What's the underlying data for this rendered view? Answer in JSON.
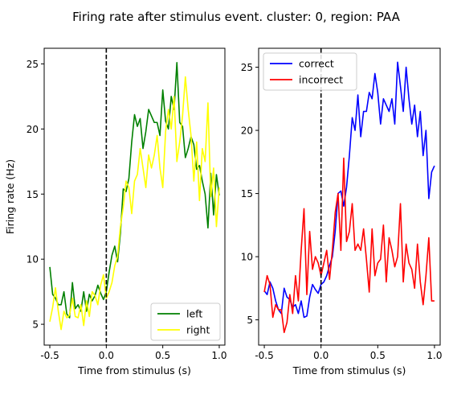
{
  "figure": {
    "suptitle": "Firing rate after stimulus event. cluster: 0, region: PAA"
  },
  "chart_data": [
    {
      "type": "line",
      "title": "",
      "xlabel": "Time from stimulus (s)",
      "ylabel": "Firing rate (Hz)",
      "xlim": [
        -0.55,
        1.05
      ],
      "ylim": [
        3.4,
        26.2
      ],
      "xticks": [
        -0.5,
        0.0,
        0.5,
        1.0
      ],
      "xtick_labels": [
        "-0.5",
        "0.0",
        "0.5",
        "1.0"
      ],
      "yticks": [
        5,
        10,
        15,
        20,
        25
      ],
      "ytick_labels": [
        "5",
        "10",
        "15",
        "20",
        "25"
      ],
      "grid": false,
      "legend_position": "lower-right",
      "stimulus_line_x": 0.0,
      "series": [
        {
          "name": "left",
          "color": "#008000",
          "x": [
            -0.5,
            -0.475,
            -0.45,
            -0.425,
            -0.4,
            -0.375,
            -0.35,
            -0.325,
            -0.3,
            -0.275,
            -0.25,
            -0.225,
            -0.2,
            -0.175,
            -0.15,
            -0.125,
            -0.1,
            -0.075,
            -0.05,
            -0.025,
            0.0,
            0.025,
            0.05,
            0.075,
            0.1,
            0.125,
            0.15,
            0.175,
            0.2,
            0.225,
            0.25,
            0.275,
            0.3,
            0.325,
            0.35,
            0.375,
            0.4,
            0.425,
            0.45,
            0.475,
            0.5,
            0.525,
            0.55,
            0.575,
            0.6,
            0.625,
            0.65,
            0.675,
            0.7,
            0.725,
            0.75,
            0.775,
            0.8,
            0.825,
            0.85,
            0.875,
            0.9,
            0.925,
            0.95,
            0.975,
            1.0
          ],
          "values": [
            9.4,
            7.3,
            7.0,
            6.5,
            6.5,
            7.5,
            5.8,
            5.5,
            8.2,
            6.2,
            6.5,
            6.0,
            7.5,
            6.0,
            7.3,
            6.8,
            7.2,
            8.0,
            7.4,
            6.9,
            7.5,
            9.0,
            10.3,
            11.0,
            9.8,
            12.0,
            15.4,
            15.2,
            16.2,
            19.0,
            21.1,
            20.2,
            20.8,
            18.5,
            19.8,
            21.5,
            21.0,
            20.5,
            20.5,
            19.5,
            23.0,
            20.6,
            20.0,
            22.5,
            21.5,
            25.1,
            20.5,
            20.2,
            17.8,
            18.5,
            19.4,
            18.8,
            16.9,
            17.2,
            16.0,
            15.0,
            12.4,
            16.6,
            13.4,
            16.5,
            14.9
          ]
        },
        {
          "name": "right",
          "color": "#ffff00",
          "x": [
            -0.5,
            -0.475,
            -0.45,
            -0.425,
            -0.4,
            -0.375,
            -0.35,
            -0.325,
            -0.3,
            -0.275,
            -0.25,
            -0.225,
            -0.2,
            -0.175,
            -0.15,
            -0.125,
            -0.1,
            -0.075,
            -0.05,
            -0.025,
            0.0,
            0.025,
            0.05,
            0.075,
            0.1,
            0.125,
            0.15,
            0.175,
            0.2,
            0.225,
            0.25,
            0.275,
            0.3,
            0.325,
            0.35,
            0.375,
            0.4,
            0.425,
            0.45,
            0.475,
            0.5,
            0.525,
            0.55,
            0.575,
            0.6,
            0.625,
            0.65,
            0.675,
            0.7,
            0.725,
            0.75,
            0.775,
            0.8,
            0.825,
            0.85,
            0.875,
            0.9,
            0.925,
            0.95,
            0.975,
            1.0
          ],
          "values": [
            5.2,
            6.3,
            7.8,
            6.0,
            4.6,
            6.0,
            5.5,
            5.7,
            7.0,
            5.6,
            5.5,
            6.5,
            4.9,
            6.8,
            5.6,
            7.5,
            7.2,
            6.5,
            8.0,
            8.8,
            7.0,
            7.5,
            8.2,
            9.5,
            10.2,
            12.5,
            14.0,
            16.0,
            15.5,
            13.5,
            16.0,
            16.5,
            18.5,
            17.0,
            15.5,
            18.0,
            17.0,
            18.0,
            19.5,
            17.0,
            15.5,
            19.8,
            21.5,
            20.0,
            22.5,
            17.5,
            19.0,
            21.0,
            24.0,
            21.5,
            19.5,
            16.0,
            19.0,
            14.5,
            18.5,
            17.5,
            22.0,
            14.8,
            17.0,
            12.5,
            15.5
          ]
        }
      ]
    },
    {
      "type": "line",
      "title": "",
      "xlabel": "Time from stimulus (s)",
      "ylabel": "",
      "xlim": [
        -0.55,
        1.05
      ],
      "ylim": [
        3.0,
        26.5
      ],
      "xticks": [
        -0.5,
        0.0,
        0.5,
        1.0
      ],
      "xtick_labels": [
        "-0.5",
        "0.0",
        "0.5",
        "1.0"
      ],
      "yticks": [
        5,
        10,
        15,
        20,
        25
      ],
      "ytick_labels": [
        "5",
        "10",
        "15",
        "20",
        "25"
      ],
      "grid": false,
      "legend_position": "top-left",
      "stimulus_line_x": 0.0,
      "series": [
        {
          "name": "correct",
          "color": "#0000ff",
          "x": [
            -0.5,
            -0.475,
            -0.45,
            -0.425,
            -0.4,
            -0.375,
            -0.35,
            -0.325,
            -0.3,
            -0.275,
            -0.25,
            -0.225,
            -0.2,
            -0.175,
            -0.15,
            -0.125,
            -0.1,
            -0.075,
            -0.05,
            -0.025,
            0.0,
            0.025,
            0.05,
            0.075,
            0.1,
            0.125,
            0.15,
            0.175,
            0.2,
            0.225,
            0.25,
            0.275,
            0.3,
            0.325,
            0.35,
            0.375,
            0.4,
            0.425,
            0.45,
            0.475,
            0.5,
            0.525,
            0.55,
            0.575,
            0.6,
            0.625,
            0.65,
            0.675,
            0.7,
            0.725,
            0.75,
            0.775,
            0.8,
            0.825,
            0.85,
            0.875,
            0.9,
            0.925,
            0.95,
            0.975,
            1.0
          ],
          "values": [
            7.3,
            7.0,
            8.0,
            7.5,
            6.5,
            5.8,
            5.5,
            7.5,
            6.8,
            6.6,
            6.0,
            6.2,
            5.5,
            6.5,
            5.2,
            5.3,
            6.8,
            7.8,
            7.4,
            7.1,
            7.8,
            8.0,
            8.5,
            9.3,
            10.0,
            12.0,
            15.0,
            15.2,
            14.0,
            15.5,
            18.0,
            21.0,
            20.0,
            22.8,
            19.5,
            21.5,
            21.5,
            23.0,
            22.5,
            24.5,
            23.0,
            20.5,
            22.5,
            22.0,
            21.5,
            22.5,
            20.5,
            25.4,
            23.5,
            21.5,
            25.0,
            22.5,
            20.5,
            22.0,
            19.5,
            21.5,
            18.0,
            20.0,
            14.6,
            16.7,
            17.2
          ]
        },
        {
          "name": "incorrect",
          "color": "#ff0000",
          "x": [
            -0.5,
            -0.475,
            -0.45,
            -0.425,
            -0.4,
            -0.375,
            -0.35,
            -0.325,
            -0.3,
            -0.275,
            -0.25,
            -0.225,
            -0.2,
            -0.175,
            -0.15,
            -0.125,
            -0.1,
            -0.075,
            -0.05,
            -0.025,
            0.0,
            0.025,
            0.05,
            0.075,
            0.1,
            0.125,
            0.15,
            0.175,
            0.2,
            0.225,
            0.25,
            0.275,
            0.3,
            0.325,
            0.35,
            0.375,
            0.4,
            0.425,
            0.45,
            0.475,
            0.5,
            0.525,
            0.55,
            0.575,
            0.6,
            0.625,
            0.65,
            0.675,
            0.7,
            0.725,
            0.75,
            0.775,
            0.8,
            0.825,
            0.85,
            0.875,
            0.9,
            0.925,
            0.95,
            0.975,
            1.0
          ],
          "values": [
            7.2,
            8.5,
            7.8,
            5.2,
            6.2,
            5.8,
            5.8,
            4.0,
            4.8,
            7.0,
            5.5,
            8.5,
            6.5,
            10.5,
            13.8,
            7.0,
            12.0,
            9.0,
            10.0,
            9.5,
            8.5,
            9.5,
            10.5,
            8.2,
            10.5,
            13.5,
            15.0,
            10.5,
            17.8,
            11.2,
            12.0,
            14.2,
            10.5,
            11.0,
            10.5,
            12.2,
            9.8,
            7.2,
            12.2,
            8.5,
            9.5,
            9.8,
            12.5,
            8.0,
            11.5,
            10.5,
            9.2,
            10.0,
            14.2,
            8.0,
            11.0,
            9.5,
            9.0,
            7.5,
            11.0,
            8.0,
            6.2,
            8.5,
            11.5,
            6.5,
            6.5
          ]
        }
      ]
    }
  ]
}
